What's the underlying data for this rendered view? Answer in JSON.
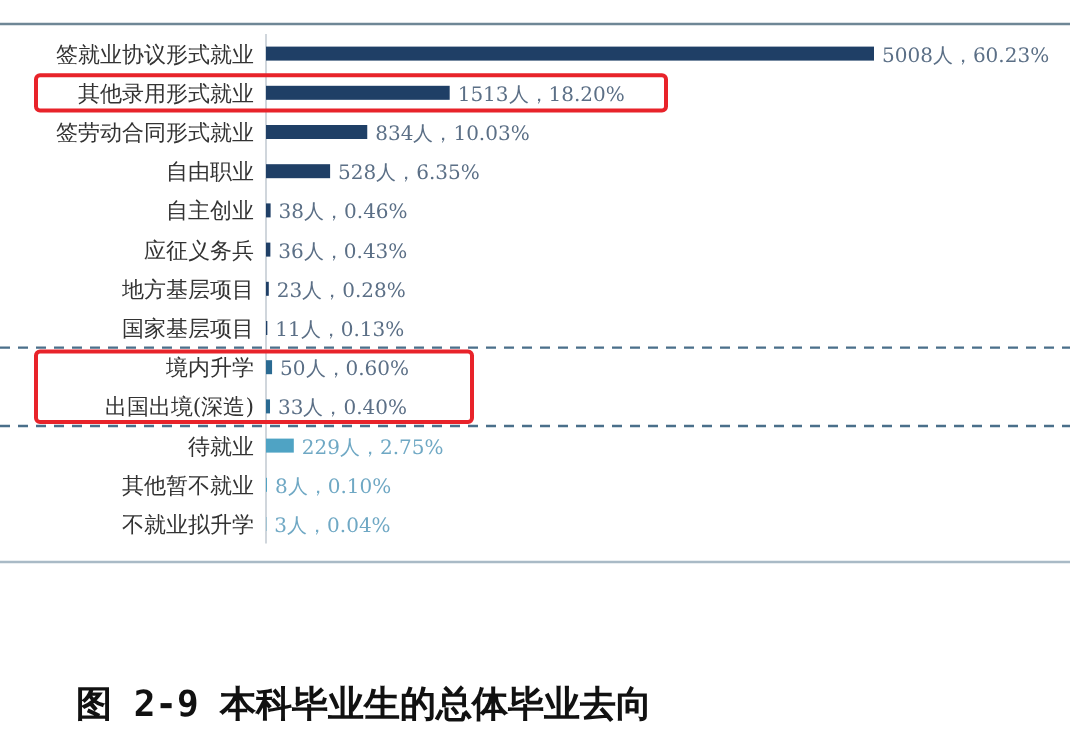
{
  "chart_data": {
    "type": "bar",
    "orientation": "horizontal",
    "title": "图 2-9 本科毕业生的总体毕业去向",
    "categories": [
      "签就业协议形式就业",
      "其他录用形式就业",
      "签劳动合同形式就业",
      "自由职业",
      "自主创业",
      "应征义务兵",
      "地方基层项目",
      "国家基层项目",
      "境内升学",
      "出国出境(深造)",
      "待就业",
      "其他暂不就业",
      "不就业拟升学"
    ],
    "values": [
      5008,
      1513,
      834,
      528,
      38,
      36,
      23,
      11,
      50,
      33,
      229,
      8,
      3
    ],
    "colors": [
      "#1f3f66",
      "#1f3f66",
      "#1f3f66",
      "#1f3f66",
      "#1f3f66",
      "#1f3f66",
      "#1f3f66",
      "#1f3f66",
      "#2a6a92",
      "#2a6a92",
      "#4fa3c4",
      "#4fa3c4",
      "#4fa3c4"
    ],
    "value_labels": [
      "5008人，60.23%",
      "1513人，18.20%",
      "834人，10.03%",
      "528人，6.35%",
      "38人，0.46%",
      "36人，0.43%",
      "23人，0.28%",
      "11人，0.13%",
      "50人，0.60%",
      "33人，0.40%",
      "229人，2.75%",
      "8人，0.10%",
      "3人，0.04%"
    ]
  }
}
